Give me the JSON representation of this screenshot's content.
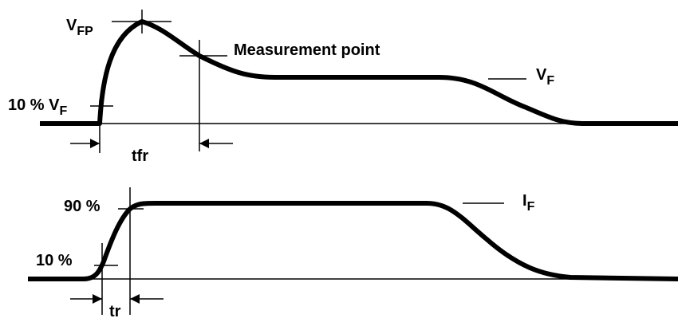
{
  "labels": {
    "vfp": {
      "main": "V",
      "sub": "FP"
    },
    "measurement": "Measurement point",
    "ten_vf": {
      "main": "10 % V",
      "sub": "F"
    },
    "vf": {
      "main": "V",
      "sub": "F"
    },
    "tfr": "tfr",
    "ninety": "90 %",
    "ten": "10 %",
    "if": {
      "main": "I",
      "sub": "F"
    },
    "tr": "tr"
  }
}
